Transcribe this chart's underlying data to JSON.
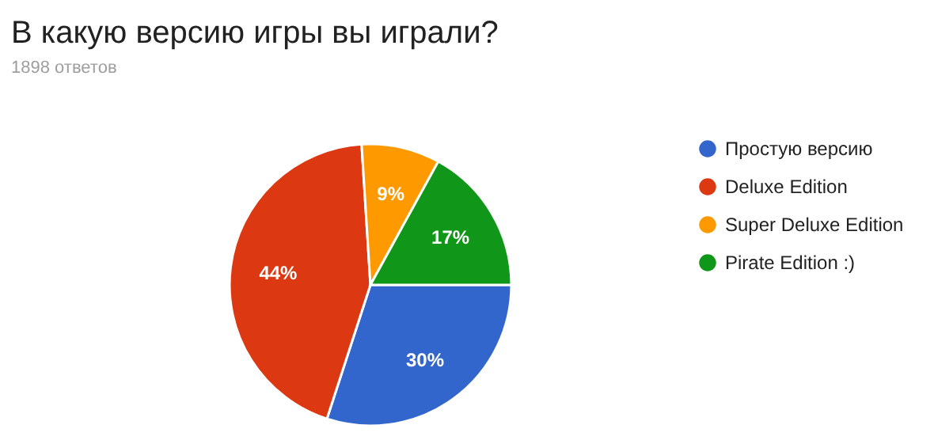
{
  "chart_data": {
    "type": "pie",
    "title": "В какую версию игры вы играли?",
    "subtitle": "1898 ответов",
    "categories": [
      "Простую версию",
      "Deluxe Edition",
      "Super Deluxe Edition",
      "Pirate Edition :)"
    ],
    "values": [
      30,
      44,
      9,
      17
    ],
    "colors": [
      "#3366cc",
      "#dc3912",
      "#ff9900",
      "#109618"
    ],
    "value_labels": [
      "30%",
      "44%",
      "9%",
      "17%"
    ],
    "legend": "right"
  }
}
